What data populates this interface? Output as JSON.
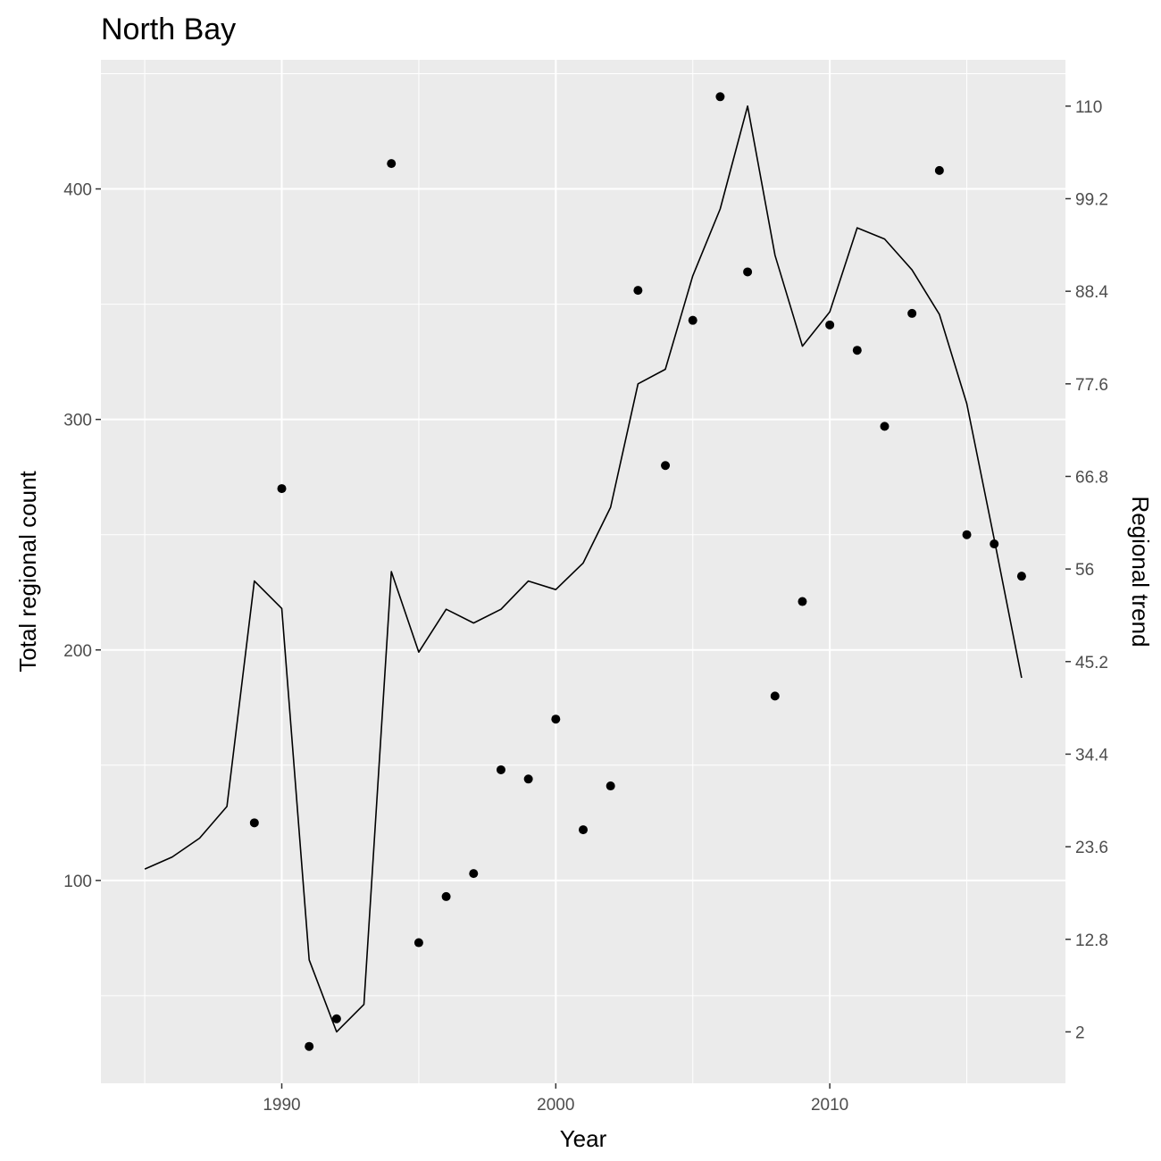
{
  "chart_data": {
    "type": "line",
    "title": "North Bay",
    "xlabel": "Year",
    "ylabel": "Total regional count",
    "y2label": "Regional trend",
    "xlim": [
      1983.4,
      2018.6
    ],
    "ylim": [
      12,
      456
    ],
    "y2lim": [
      -4.0,
      115.4
    ],
    "x_ticks": [
      1990,
      2000,
      2010
    ],
    "y_ticks": [
      100,
      200,
      300,
      400
    ],
    "y2_ticks": [
      "2",
      "12.8",
      "23.6",
      "34.4",
      "45.2",
      "56",
      "66.8",
      "77.6",
      "88.4",
      "99.2",
      "110"
    ],
    "grid": true,
    "background": "#ebebeb",
    "grid_color": "#ffffff",
    "series": [
      {
        "type": "scatter",
        "axis": "left",
        "color": "#000000",
        "points": [
          [
            1989,
            125
          ],
          [
            1990,
            270
          ],
          [
            1991,
            28
          ],
          [
            1992,
            40
          ],
          [
            1994,
            411
          ],
          [
            1995,
            73
          ],
          [
            1996,
            93
          ],
          [
            1997,
            103
          ],
          [
            1998,
            148
          ],
          [
            1999,
            144
          ],
          [
            2000,
            170
          ],
          [
            2001,
            122
          ],
          [
            2002,
            141
          ],
          [
            2003,
            356
          ],
          [
            2004,
            280
          ],
          [
            2005,
            343
          ],
          [
            2006,
            440
          ],
          [
            2007,
            364
          ],
          [
            2008,
            180
          ],
          [
            2009,
            221
          ],
          [
            2010,
            341
          ],
          [
            2011,
            330
          ],
          [
            2012,
            297
          ],
          [
            2013,
            346
          ],
          [
            2014,
            408
          ],
          [
            2015,
            250
          ],
          [
            2016,
            246
          ],
          [
            2017,
            232
          ]
        ]
      },
      {
        "type": "line",
        "axis": "right",
        "color": "#000000",
        "points": [
          [
            1985,
            21.0
          ],
          [
            1986,
            22.4
          ],
          [
            1987,
            24.6
          ],
          [
            1988,
            28.3
          ],
          [
            1989,
            54.6
          ],
          [
            1990,
            51.4
          ],
          [
            1991,
            10.4
          ],
          [
            1992,
            2.0
          ],
          [
            1993,
            5.2
          ],
          [
            1994,
            55.7
          ],
          [
            1995,
            46.3
          ],
          [
            1996,
            51.3
          ],
          [
            1997,
            49.7
          ],
          [
            1998,
            51.3
          ],
          [
            1999,
            54.6
          ],
          [
            2000,
            53.6
          ],
          [
            2001,
            56.7
          ],
          [
            2002,
            63.2
          ],
          [
            2003,
            77.6
          ],
          [
            2004,
            79.3
          ],
          [
            2005,
            90.2
          ],
          [
            2006,
            98.0
          ],
          [
            2007,
            110.0
          ],
          [
            2008,
            92.6
          ],
          [
            2009,
            82.0
          ],
          [
            2010,
            86.0
          ],
          [
            2011,
            95.8
          ],
          [
            2012,
            94.5
          ],
          [
            2013,
            90.9
          ],
          [
            2014,
            85.7
          ],
          [
            2015,
            75.3
          ],
          [
            2016,
            59.5
          ],
          [
            2017,
            43.3
          ]
        ]
      }
    ]
  }
}
